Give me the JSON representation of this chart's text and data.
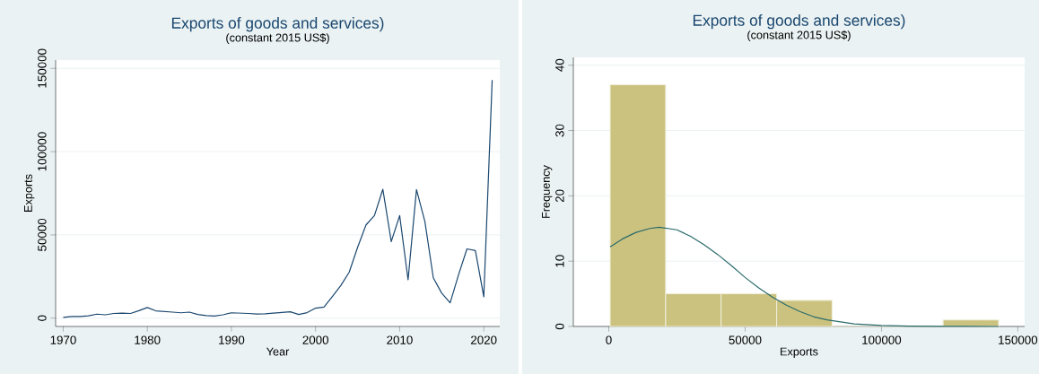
{
  "chart_data": [
    {
      "type": "line",
      "title": "Exports of goods and services)",
      "subtitle": "(constant 2015 US$)",
      "xlabel": "Year",
      "ylabel": "Exports",
      "x": [
        1970,
        1971,
        1972,
        1973,
        1974,
        1975,
        1976,
        1977,
        1978,
        1979,
        1980,
        1981,
        1982,
        1983,
        1984,
        1985,
        1986,
        1987,
        1988,
        1989,
        1990,
        1991,
        1992,
        1993,
        1994,
        1995,
        1996,
        1997,
        1998,
        1999,
        2000,
        2001,
        2002,
        2003,
        2004,
        2005,
        2006,
        2007,
        2008,
        2009,
        2010,
        2011,
        2012,
        2013,
        2014,
        2015,
        2016,
        2017,
        2018,
        2019,
        2020,
        2021
      ],
      "series": [
        {
          "color": "#1a476f",
          "values": [
            400,
            1000,
            1000,
            1400,
            2400,
            2000,
            2800,
            3000,
            2800,
            4500,
            6400,
            4400,
            4000,
            3600,
            3200,
            3600,
            2200,
            1500,
            1300,
            2000,
            3200,
            3000,
            2800,
            2500,
            2600,
            3000,
            3400,
            3800,
            2200,
            3300,
            6000,
            6600,
            13000,
            19600,
            27600,
            42500,
            56000,
            61600,
            77400,
            46000,
            61600,
            23000,
            77200,
            58000,
            24200,
            15000,
            9200,
            26000,
            41600,
            40600,
            12800,
            143000
          ]
        }
      ],
      "xlim": [
        1969.1,
        2021.9
      ],
      "ylim": [
        -5000,
        155000
      ],
      "xticks": [
        1970,
        1980,
        1990,
        2000,
        2010,
        2020
      ],
      "yticks": [
        0,
        50000,
        100000,
        150000
      ],
      "grid": "y"
    },
    {
      "type": "histogram",
      "title": "Exports of goods and services)",
      "subtitle": "(constant 2015 US$)",
      "xlabel": "Exports",
      "ylabel": "Frequency",
      "series": [
        {
          "type": "histogram",
          "color": "#cbc27f",
          "bins": [
            500,
            20850,
            41200,
            61550,
            81900,
            102250,
            122600,
            142950
          ],
          "values": [
            37,
            5,
            5,
            4,
            0,
            0,
            1
          ]
        },
        {
          "type": "line",
          "color": "#2b6b6b",
          "x": [
            500,
            5000,
            10000,
            15000,
            18500,
            25000,
            30000,
            35000,
            40000,
            45000,
            50000,
            55000,
            60000,
            65000,
            70000,
            75000,
            80000,
            90000,
            100000,
            110000,
            120000,
            130000,
            142950
          ],
          "values": [
            12.2,
            13.4,
            14.4,
            15.0,
            15.2,
            14.8,
            13.8,
            12.5,
            11.0,
            9.3,
            7.5,
            5.9,
            4.5,
            3.3,
            2.3,
            1.5,
            1.0,
            0.4,
            0.15,
            0.05,
            0.02,
            0.01,
            0
          ]
        }
      ],
      "xlim": [
        -13000,
        152500
      ],
      "ylim": [
        0,
        41.2
      ],
      "xticks": [
        0,
        50000,
        100000,
        150000
      ],
      "yticks": [
        0,
        10,
        20,
        30,
        40
      ],
      "grid": "y"
    }
  ]
}
